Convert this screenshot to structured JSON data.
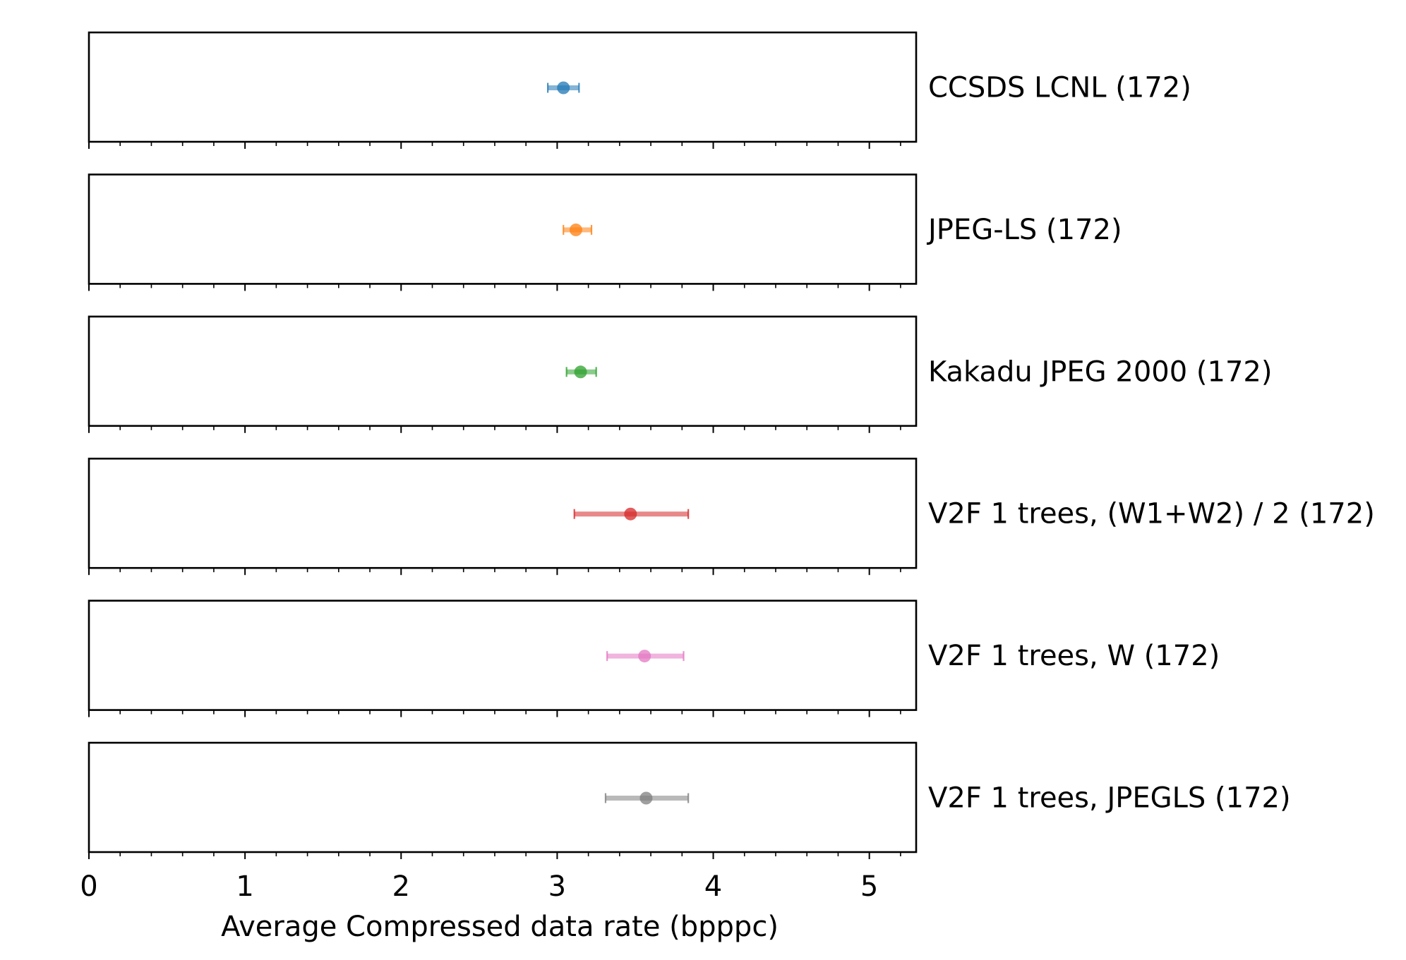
{
  "chart_data": {
    "type": "errorbar",
    "xlabel": "Average Compressed data rate (bpppc)",
    "xlim": [
      0,
      5.3
    ],
    "x_ticks": [
      0,
      1,
      2,
      3,
      4,
      5
    ],
    "x_tick_labels": [
      "0",
      "1",
      "2",
      "3",
      "4",
      "5"
    ],
    "minor_tick_step": 0.2,
    "grid": false,
    "series": [
      {
        "name": "CCSDS LCNL (172)",
        "mean": 3.04,
        "low": 2.94,
        "high": 3.14,
        "color": "#1f77b4"
      },
      {
        "name": "JPEG-LS (172)",
        "mean": 3.12,
        "low": 3.04,
        "high": 3.22,
        "color": "#ff7f0e"
      },
      {
        "name": "Kakadu JPEG 2000 (172)",
        "mean": 3.15,
        "low": 3.06,
        "high": 3.25,
        "color": "#2ca02c"
      },
      {
        "name": "V2F 1 trees, (W1+W2) / 2 (172)",
        "mean": 3.47,
        "low": 3.11,
        "high": 3.84,
        "color": "#d62728"
      },
      {
        "name": "V2F 1 trees, W (172)",
        "mean": 3.56,
        "low": 3.32,
        "high": 3.81,
        "color": "#e377c2"
      },
      {
        "name": "V2F 1 trees, JPEGLS (172)",
        "mean": 3.57,
        "low": 3.31,
        "high": 3.84,
        "color": "#7f7f7f"
      }
    ]
  }
}
